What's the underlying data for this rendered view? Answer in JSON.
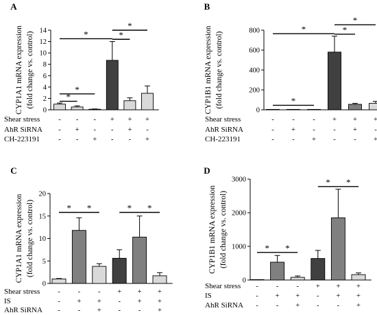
{
  "chart_data": [
    {
      "panel": "A",
      "type": "bar",
      "ylabel": [
        "CYP1A1 mRNA expression",
        "(fold change vs. control)"
      ],
      "ylim": [
        0,
        14
      ],
      "yticks": [
        0,
        2,
        4,
        6,
        8,
        10,
        12,
        14
      ],
      "values": [
        1.0,
        0.5,
        0.1,
        8.7,
        1.6,
        2.9
      ],
      "errors": [
        0.2,
        0.2,
        0.05,
        3.3,
        0.5,
        1.3
      ],
      "colors": [
        "#d9d9d9",
        "#d9d9d9",
        "#d9d9d9",
        "#404040",
        "#d9d9d9",
        "#d9d9d9"
      ],
      "conditions": [
        {
          "label": "Shear stress",
          "symbols": [
            "-",
            "-",
            "-",
            "+",
            "+",
            "+"
          ]
        },
        {
          "label": "AhR SiRNA",
          "symbols": [
            "-",
            "+",
            "-",
            "-",
            "+",
            "-"
          ]
        },
        {
          "label": "CH-223191",
          "symbols": [
            "-",
            "-",
            "+",
            "-",
            "-",
            "+"
          ]
        }
      ],
      "significance": [
        {
          "from": 0,
          "to": 1,
          "level": 1.5,
          "label": "*"
        },
        {
          "from": 0,
          "to": 2,
          "level": 2.8,
          "label": "*"
        },
        {
          "from": 0,
          "to": 3,
          "level": 12.5,
          "label": "*"
        },
        {
          "from": 3,
          "to": 4,
          "level": 12.4,
          "label": "*"
        },
        {
          "from": 3,
          "to": 5,
          "level": 14.0,
          "label": "*"
        }
      ]
    },
    {
      "panel": "B",
      "type": "bar",
      "ylabel": [
        "CYP1B1 mRNA expression",
        "(fold change vs. control)"
      ],
      "ylim": [
        0,
        800
      ],
      "yticks": [
        0,
        200,
        400,
        600,
        800
      ],
      "values": [
        1,
        1,
        1,
        580,
        55,
        65
      ],
      "errors": [
        1,
        1,
        1,
        160,
        10,
        20
      ],
      "colors": [
        "#d9d9d9",
        "#d9d9d9",
        "#d9d9d9",
        "#404040",
        "#808080",
        "#d9d9d9"
      ],
      "conditions": [
        {
          "label": "Shear stress",
          "symbols": [
            "-",
            "-",
            "-",
            "+",
            "+",
            "+"
          ]
        },
        {
          "label": "AhR SiRNA",
          "symbols": [
            "-",
            "+",
            "-",
            "-",
            "+",
            "-"
          ]
        },
        {
          "label": "CH-223191",
          "symbols": [
            "-",
            "-",
            "+",
            "-",
            "-",
            "+"
          ]
        }
      ],
      "significance": [
        {
          "from": 0,
          "to": 2,
          "level": 45,
          "label": "*"
        },
        {
          "from": 0,
          "to": 3,
          "level": 765,
          "label": "*"
        },
        {
          "from": 3,
          "to": 4,
          "level": 760,
          "label": "*"
        },
        {
          "from": 3,
          "to": 5,
          "level": 855,
          "label": "*"
        }
      ]
    },
    {
      "panel": "C",
      "type": "bar",
      "ylabel": [
        "CYP1A1 mRNA expression",
        "(fold change vs. control)"
      ],
      "ylim": [
        0,
        20
      ],
      "yticks": [
        0,
        5,
        10,
        15,
        20
      ],
      "values": [
        1.0,
        11.8,
        3.8,
        5.6,
        10.3,
        1.7
      ],
      "errors": [
        0.1,
        2.8,
        0.6,
        1.9,
        4.7,
        0.7
      ],
      "colors": [
        "#d9d9d9",
        "#808080",
        "#d9d9d9",
        "#404040",
        "#808080",
        "#d9d9d9"
      ],
      "conditions": [
        {
          "label": "Shear stress",
          "symbols": [
            "-",
            "-",
            "-",
            "+",
            "+",
            "+"
          ]
        },
        {
          "label": "IS",
          "symbols": [
            "-",
            "+",
            "+",
            "-",
            "+",
            "+"
          ]
        },
        {
          "label": "AhR SiRNA",
          "symbols": [
            "-",
            "-",
            "+",
            "-",
            "-",
            "+"
          ]
        }
      ],
      "significance": [
        {
          "from": 0,
          "to": 1,
          "level": 15.8,
          "label": "*"
        },
        {
          "from": 1,
          "to": 2,
          "level": 15.8,
          "label": "*"
        },
        {
          "from": 3,
          "to": 4,
          "level": 15.8,
          "label": "*"
        },
        {
          "from": 4,
          "to": 5,
          "level": 15.8,
          "label": "*"
        }
      ]
    },
    {
      "panel": "D",
      "type": "bar",
      "ylabel": [
        "CYP1B1 mRNA expression",
        "(fold change vs. control)"
      ],
      "ylim": [
        0,
        3000
      ],
      "yticks": [
        0,
        1000,
        2000,
        3000
      ],
      "values": [
        1,
        530,
        80,
        640,
        1850,
        160
      ],
      "errors": [
        1,
        200,
        40,
        240,
        850,
        50
      ],
      "colors": [
        "#d9d9d9",
        "#808080",
        "#d9d9d9",
        "#404040",
        "#808080",
        "#d9d9d9"
      ],
      "conditions": [
        {
          "label": "Shear stress",
          "symbols": [
            "-",
            "-",
            "-",
            "+",
            "+",
            "+"
          ]
        },
        {
          "label": "IS",
          "symbols": [
            "-",
            "+",
            "+",
            "-",
            "+",
            "+"
          ]
        },
        {
          "label": "AhR SiRNA",
          "symbols": [
            "-",
            "-",
            "+",
            "-",
            "-",
            "+"
          ]
        }
      ],
      "significance": [
        {
          "from": 0,
          "to": 1,
          "level": 820,
          "label": "*"
        },
        {
          "from": 1,
          "to": 2,
          "level": 820,
          "label": "*"
        },
        {
          "from": 3,
          "to": 4,
          "level": 2780,
          "label": "*"
        },
        {
          "from": 4,
          "to": 5,
          "level": 2780,
          "label": "*"
        }
      ]
    }
  ]
}
